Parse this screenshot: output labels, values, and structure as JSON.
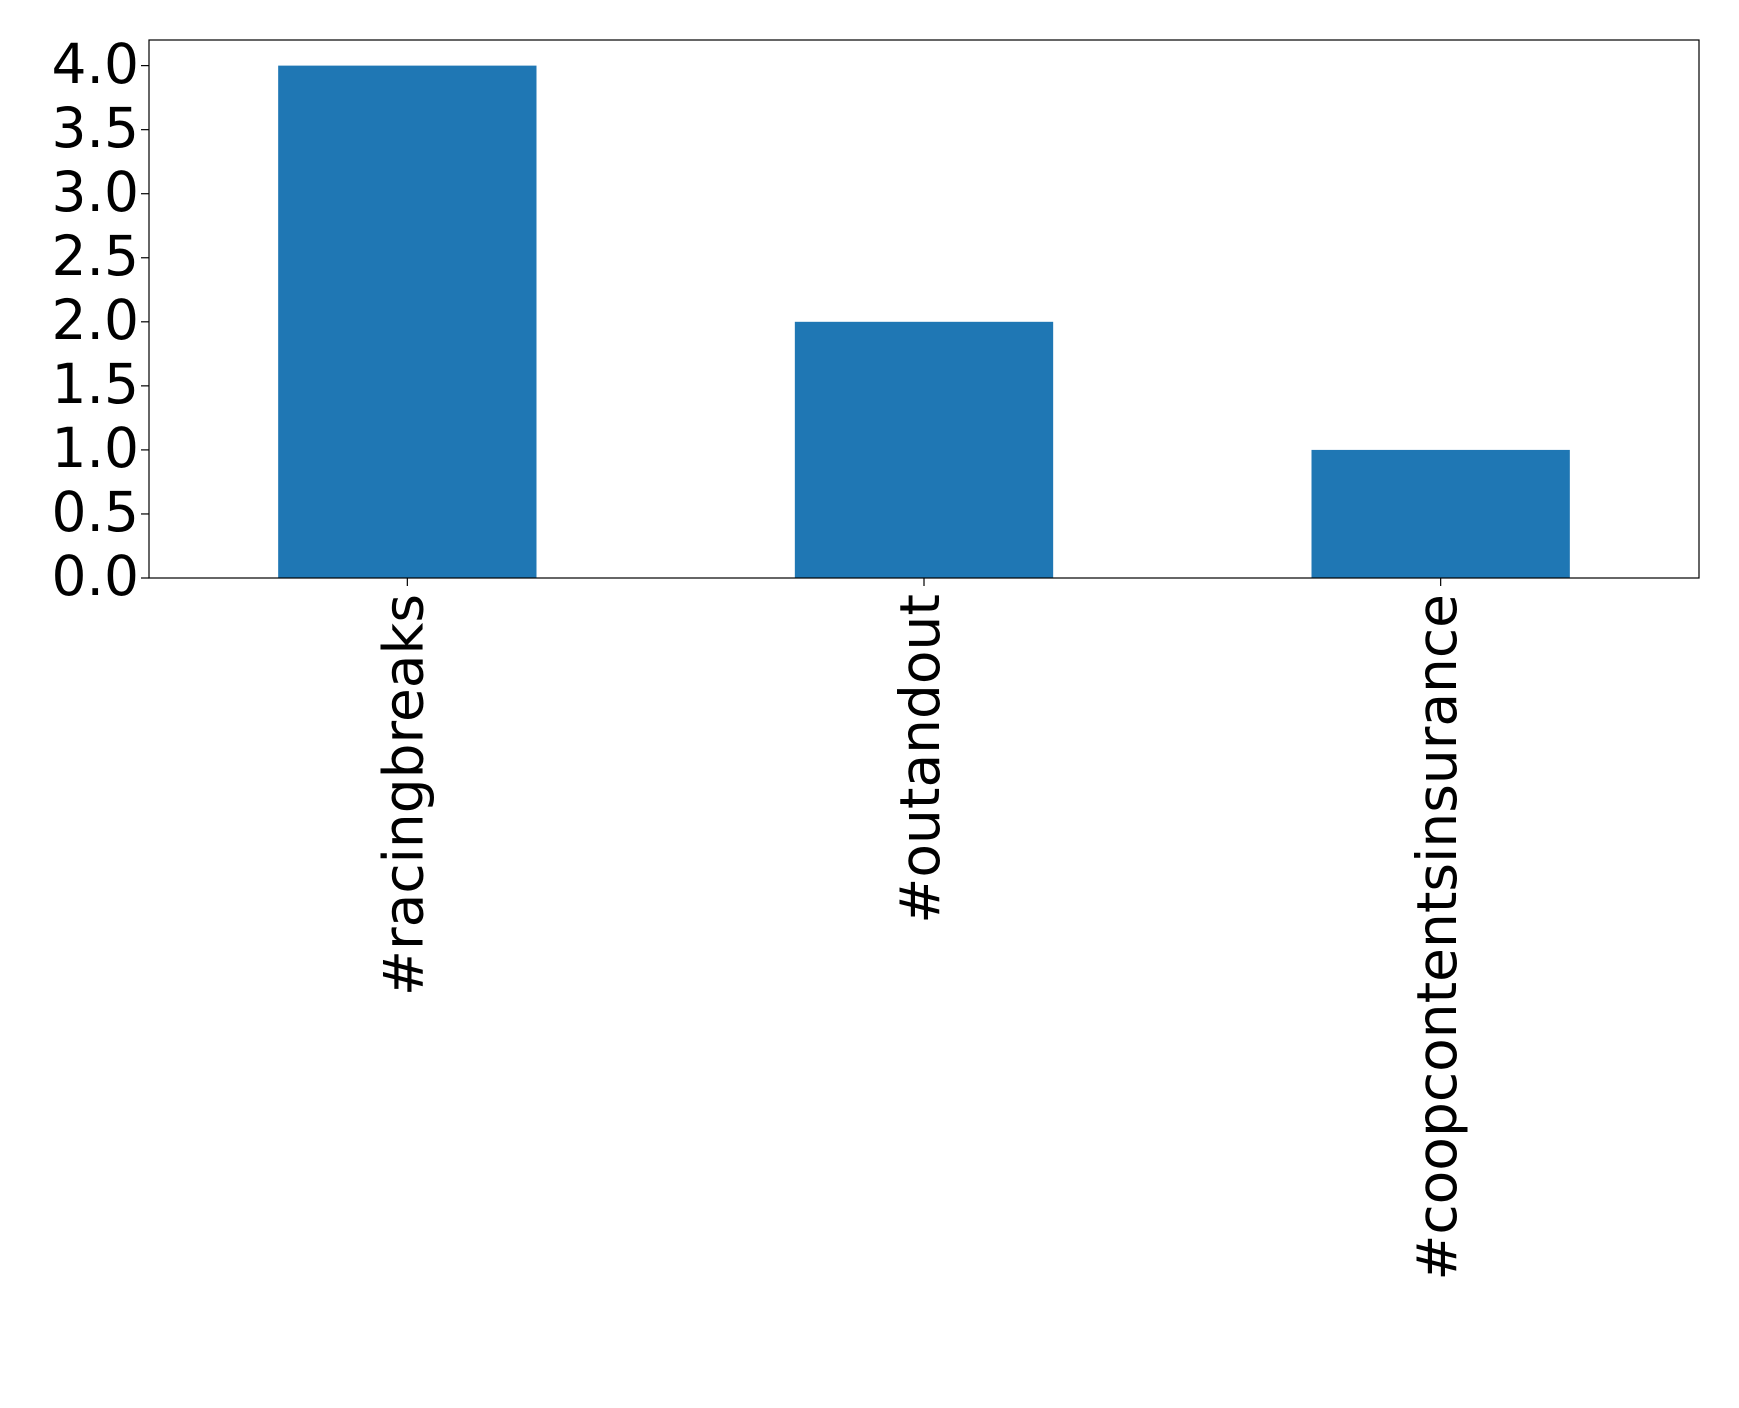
{
  "chart_data": {
    "type": "bar",
    "categories": [
      "#racingbreaks",
      "#outandout",
      "#coopcontentsinsurance"
    ],
    "values": [
      4,
      2,
      1
    ],
    "color": "#1f77b4",
    "ylim": [
      0,
      4.2
    ],
    "yticks": [
      {
        "value": 0,
        "label": "0.0"
      },
      {
        "value": 0.5,
        "label": "0.5"
      },
      {
        "value": 1,
        "label": "1.0"
      },
      {
        "value": 1.5,
        "label": "1.5"
      },
      {
        "value": 2,
        "label": "2.0"
      },
      {
        "value": 2.5,
        "label": "2.5"
      },
      {
        "value": 3,
        "label": "3.0"
      },
      {
        "value": 3.5,
        "label": "3.5"
      },
      {
        "value": 4,
        "label": "4.0"
      }
    ],
    "grid": false
  }
}
